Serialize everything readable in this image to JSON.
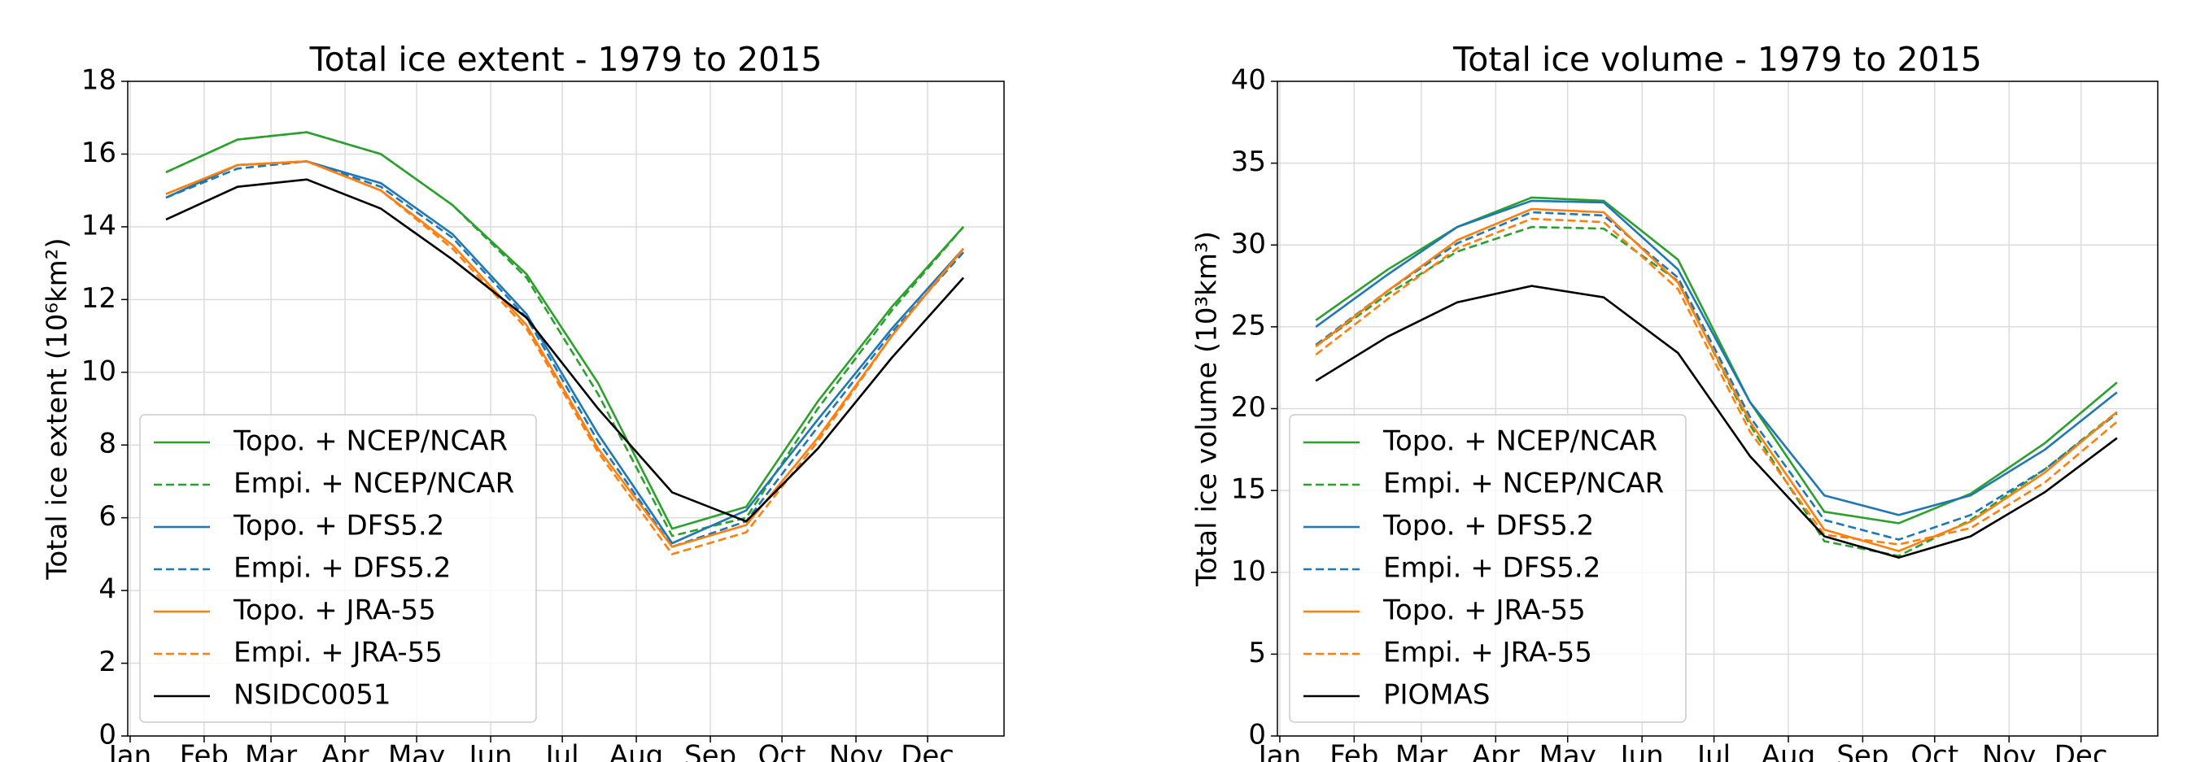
{
  "chart_data": [
    {
      "type": "line",
      "title": "Total ice extent - 1979 to 2015",
      "y_label": "Total ice extent (10⁶km²)",
      "x": [
        15,
        45,
        74,
        105,
        135,
        166,
        196,
        227,
        258,
        288,
        319,
        349
      ],
      "xlim": [
        -1,
        366
      ],
      "xticks": [
        {
          "value": 0,
          "label": "Jan"
        },
        {
          "value": 31,
          "label": "Feb"
        },
        {
          "value": 59,
          "label": "Mar"
        },
        {
          "value": 90,
          "label": "Apr"
        },
        {
          "value": 120,
          "label": "May"
        },
        {
          "value": 151,
          "label": "Jun"
        },
        {
          "value": 181,
          "label": "Jul"
        },
        {
          "value": 212,
          "label": "Aug"
        },
        {
          "value": 243,
          "label": "Sep"
        },
        {
          "value": 273,
          "label": "Oct"
        },
        {
          "value": 304,
          "label": "Nov"
        },
        {
          "value": 334,
          "label": "Dec"
        }
      ],
      "ylim": [
        0,
        18
      ],
      "yticks": [
        0,
        2,
        4,
        6,
        8,
        10,
        12,
        14,
        16,
        18
      ],
      "grid": true,
      "legend": "lower left",
      "series": [
        {
          "name": "Topo. + NCEP/NCAR",
          "color": "#2ca02c",
          "linestyle": "solid",
          "values": [
            15.5,
            16.4,
            16.6,
            16.0,
            14.6,
            12.7,
            9.7,
            5.7,
            6.3,
            9.2,
            11.8,
            14.0
          ]
        },
        {
          "name": "Empi. + NCEP/NCAR",
          "color": "#2ca02c",
          "linestyle": "dashed",
          "values": [
            15.5,
            16.4,
            16.6,
            16.0,
            14.6,
            12.6,
            9.4,
            5.5,
            6.0,
            9.0,
            11.7,
            14.0
          ]
        },
        {
          "name": "Topo. + DFS5.2",
          "color": "#1f77b4",
          "linestyle": "solid",
          "values": [
            14.8,
            15.7,
            15.8,
            15.2,
            13.8,
            11.6,
            8.3,
            5.3,
            6.2,
            8.7,
            11.2,
            13.4
          ]
        },
        {
          "name": "Empi. + DFS5.2",
          "color": "#1f77b4",
          "linestyle": "dashed",
          "values": [
            14.8,
            15.6,
            15.8,
            15.1,
            13.7,
            11.5,
            8.1,
            5.2,
            5.9,
            8.5,
            11.1,
            13.3
          ]
        },
        {
          "name": "Topo. + JRA-55",
          "color": "#ff7f0e",
          "linestyle": "solid",
          "values": [
            14.9,
            15.7,
            15.8,
            15.0,
            13.5,
            11.3,
            7.9,
            5.2,
            5.8,
            8.2,
            11.0,
            13.4
          ]
        },
        {
          "name": "Empi. + JRA-55",
          "color": "#ff7f0e",
          "linestyle": "dashed",
          "values": [
            14.9,
            15.7,
            15.8,
            15.0,
            13.4,
            11.2,
            7.8,
            5.0,
            5.6,
            8.1,
            11.0,
            13.4
          ]
        },
        {
          "name": "NSIDC0051",
          "color": "#000000",
          "linestyle": "solid",
          "values": [
            14.2,
            15.1,
            15.3,
            14.5,
            13.1,
            11.5,
            9.0,
            6.7,
            5.9,
            7.9,
            10.4,
            12.6
          ]
        }
      ]
    },
    {
      "type": "line",
      "title": "Total ice volume - 1979 to 2015",
      "y_label": "Total ice volume (10³km³)",
      "x": [
        15,
        45,
        74,
        105,
        135,
        166,
        196,
        227,
        258,
        288,
        319,
        349
      ],
      "xlim": [
        -1,
        366
      ],
      "xticks": [
        {
          "value": 0,
          "label": "Jan"
        },
        {
          "value": 31,
          "label": "Feb"
        },
        {
          "value": 59,
          "label": "Mar"
        },
        {
          "value": 90,
          "label": "Apr"
        },
        {
          "value": 120,
          "label": "May"
        },
        {
          "value": 151,
          "label": "Jun"
        },
        {
          "value": 181,
          "label": "Jul"
        },
        {
          "value": 212,
          "label": "Aug"
        },
        {
          "value": 243,
          "label": "Sep"
        },
        {
          "value": 273,
          "label": "Oct"
        },
        {
          "value": 304,
          "label": "Nov"
        },
        {
          "value": 334,
          "label": "Dec"
        }
      ],
      "ylim": [
        0,
        40
      ],
      "yticks": [
        0,
        5,
        10,
        15,
        20,
        25,
        30,
        35,
        40
      ],
      "grid": true,
      "legend": "lower left",
      "series": [
        {
          "name": "Topo. + NCEP/NCAR",
          "color": "#2ca02c",
          "linestyle": "solid",
          "values": [
            25.4,
            28.5,
            31.1,
            32.9,
            32.7,
            29.1,
            20.4,
            13.7,
            13.0,
            14.8,
            17.9,
            21.6
          ]
        },
        {
          "name": "Empi. + NCEP/NCAR",
          "color": "#2ca02c",
          "linestyle": "dashed",
          "values": [
            23.8,
            27.0,
            29.6,
            31.1,
            31.0,
            27.8,
            19.0,
            11.9,
            11.0,
            13.2,
            16.3,
            19.8
          ]
        },
        {
          "name": "Topo. + DFS5.2",
          "color": "#1f77b4",
          "linestyle": "solid",
          "values": [
            25.0,
            28.2,
            31.1,
            32.7,
            32.6,
            28.5,
            20.4,
            14.7,
            13.5,
            14.7,
            17.5,
            21.0
          ]
        },
        {
          "name": "Empi. + DFS5.2",
          "color": "#1f77b4",
          "linestyle": "dashed",
          "values": [
            23.9,
            27.2,
            30.1,
            32.0,
            31.8,
            28.0,
            19.5,
            13.2,
            12.0,
            13.5,
            16.3,
            19.7
          ]
        },
        {
          "name": "Topo. + JRA-55",
          "color": "#ff7f0e",
          "linestyle": "solid",
          "values": [
            23.8,
            27.2,
            30.3,
            32.2,
            32.0,
            27.7,
            19.2,
            12.6,
            11.3,
            13.1,
            16.1,
            19.8
          ]
        },
        {
          "name": "Empi. + JRA-55",
          "color": "#ff7f0e",
          "linestyle": "dashed",
          "values": [
            23.3,
            26.7,
            29.8,
            31.6,
            31.4,
            27.3,
            18.6,
            12.3,
            11.7,
            12.7,
            15.5,
            19.2
          ]
        },
        {
          "name": "PIOMAS",
          "color": "#000000",
          "linestyle": "solid",
          "values": [
            21.7,
            24.4,
            26.5,
            27.5,
            26.8,
            23.4,
            17.1,
            12.2,
            10.9,
            12.2,
            14.9,
            18.2
          ]
        }
      ]
    }
  ]
}
